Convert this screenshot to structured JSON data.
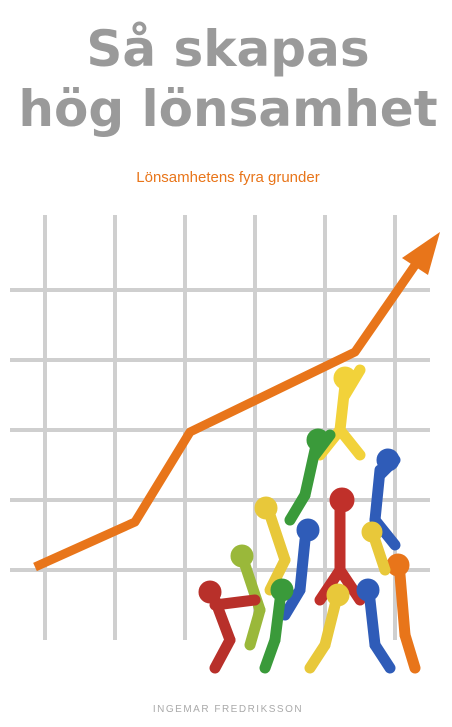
{
  "cover": {
    "title": [
      "Så skapas",
      "hög lönsamhet"
    ],
    "subtitle": "Lönsamhetens fyra grunder",
    "author": "INGEMAR FREDRIKSSON"
  }
}
